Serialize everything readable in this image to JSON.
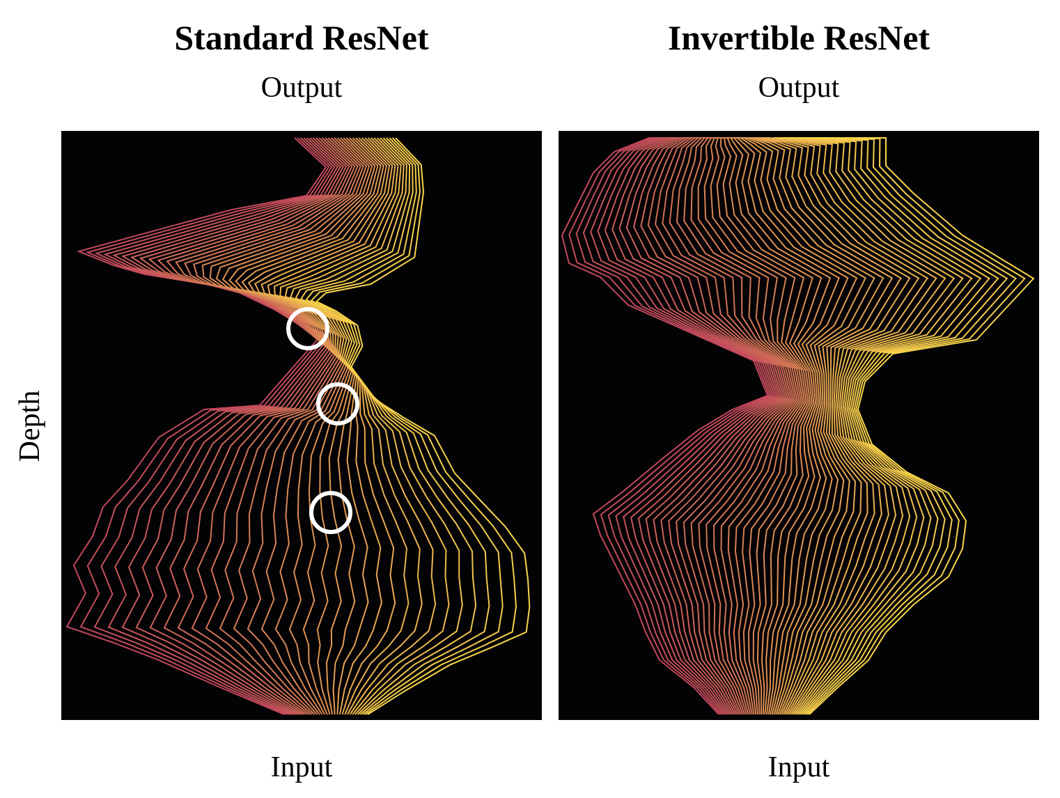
{
  "figure": {
    "y_label": "Depth",
    "panels": [
      {
        "title": "Standard ResNet",
        "top_label": "Output",
        "bottom_label": "Input"
      },
      {
        "title": "Invertible ResNet",
        "top_label": "Output",
        "bottom_label": "Input"
      }
    ]
  },
  "colors": {
    "trajectory_start": "#c2485c",
    "trajectory_end": "#f8d54a",
    "panel_background": "#030305",
    "marker": "#ffffff"
  }
}
